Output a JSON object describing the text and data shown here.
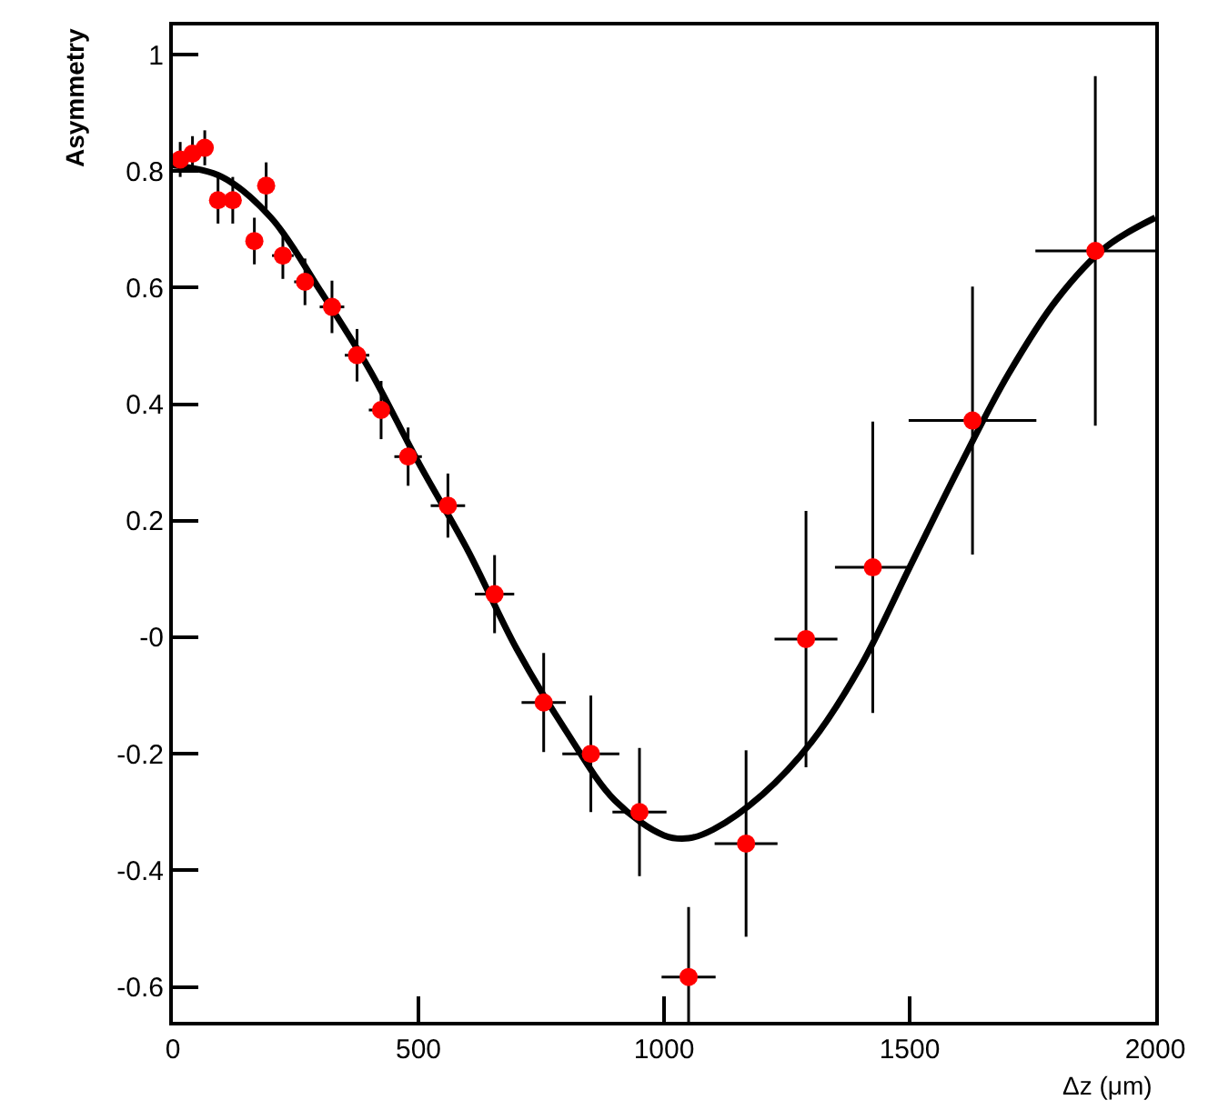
{
  "chart_data": {
    "type": "scatter",
    "xlabel": "Δz (μm)",
    "ylabel": "Asymmetry",
    "xlim": [
      0,
      2000
    ],
    "ylim": [
      -0.66,
      1.05
    ],
    "xticks": [
      0,
      500,
      1000,
      1500,
      2000
    ],
    "yticks": [
      1,
      {
        "value": 0.8,
        "label": "0.8"
      },
      {
        "value": 0.6,
        "label": "0.6"
      },
      {
        "value": 0.4,
        "label": "0.4"
      },
      {
        "value": 0.2,
        "label": "0.2"
      },
      {
        "value": 0,
        "label": "-0"
      },
      {
        "value": -0.2,
        "label": "-0.2"
      },
      {
        "value": -0.4,
        "label": "-0.4"
      },
      {
        "value": -0.6,
        "label": "-0.6"
      }
    ],
    "marker": "circle",
    "series": [
      {
        "color": "#ff0000",
        "x": [
          15,
          40,
          65,
          92,
          122,
          166,
          190,
          224,
          269,
          324,
          375,
          424,
          479,
          560,
          655,
          755,
          851,
          950,
          1050,
          1167,
          1289,
          1425,
          1628,
          1878
        ],
        "values": [
          0.82,
          0.83,
          0.84,
          0.75,
          0.75,
          0.68,
          0.775,
          0.655,
          0.61,
          0.567,
          0.484,
          0.39,
          0.31,
          0.226,
          0.074,
          -0.112,
          -0.2,
          -0.3,
          -0.583,
          -0.354,
          -0.003,
          0.12,
          0.372,
          0.663
        ],
        "errors": [
          0.03,
          0.03,
          0.03,
          0.04,
          0.04,
          0.04,
          0.04,
          0.04,
          0.04,
          0.045,
          0.045,
          0.05,
          0.05,
          0.055,
          0.067,
          0.085,
          0.1,
          0.11,
          0.12,
          0.16,
          0.22,
          0.25,
          0.23,
          0.3
        ],
        "xerrors": [
          null,
          null,
          null,
          null,
          null,
          null,
          null,
          22,
          22,
          25,
          25,
          25,
          28,
          35,
          40,
          45,
          58,
          55,
          55,
          64,
          64,
          77,
          130,
          122
        ]
      },
      {
        "type": "line",
        "color": "#000000",
        "line_style": "solid",
        "marker": "none",
        "x": [
          0,
          100,
          200,
          300,
          400,
          500,
          600,
          700,
          800,
          900,
          1000,
          1050,
          1100,
          1200,
          1300,
          1400,
          1500,
          1600,
          1700,
          1800,
          1900,
          2000
        ],
        "values": [
          0.81,
          0.79,
          0.72,
          0.595,
          0.46,
          0.3,
          0.15,
          -0.02,
          -0.16,
          -0.28,
          -0.34,
          -0.345,
          -0.33,
          -0.27,
          -0.18,
          -0.05,
          0.12,
          0.29,
          0.45,
          0.58,
          0.67,
          0.72
        ]
      }
    ]
  }
}
